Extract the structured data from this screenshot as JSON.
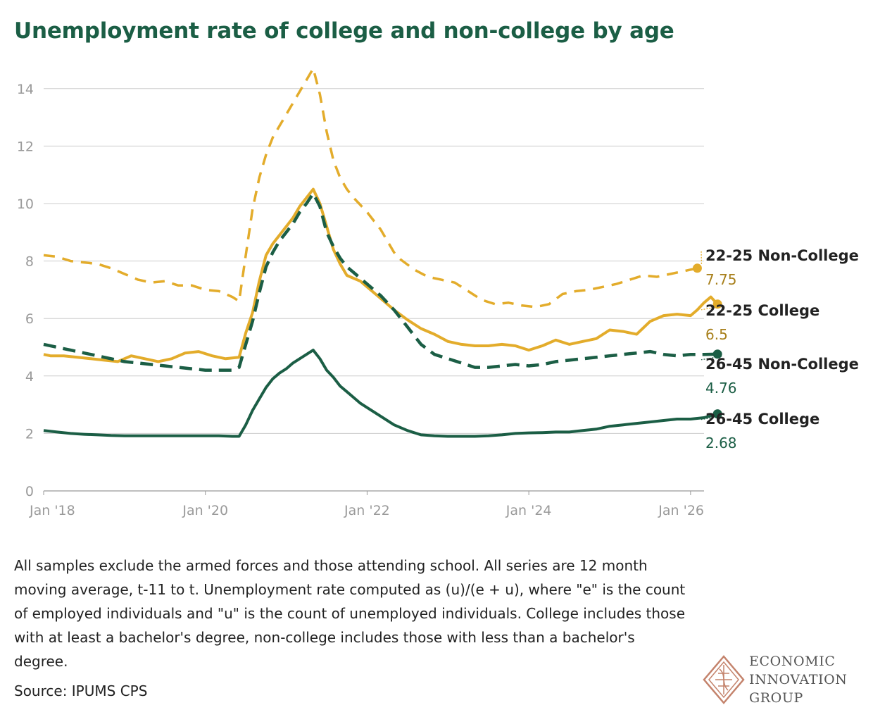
{
  "title": "Unemployment rate of college and non-college by age",
  "note": "All samples exclude the armed forces and those attending school. All series are 12 month moving average, t-11 to t. Unemployment rate computed as (u)/(e + u), where \"e\" is the count of employed individuals and \"u\" is the count of unemployed individuals. College includes those with at least a bachelor's degree, non-college includes those with less than a bachelor's degree.",
  "source": "Source: IPUMS CPS",
  "logo": {
    "lines": [
      "ECONOMIC",
      "INNOVATION",
      "GROUP"
    ]
  },
  "colors": {
    "gold": "#e3ac2b",
    "gold_text": "#a8801c",
    "green": "#1b5e45",
    "green_text": "#1b5e45",
    "grid": "#cccccc",
    "title": "#1b5e45"
  },
  "chart_data": {
    "type": "line",
    "title": "Unemployment rate of college and non-college by age",
    "xlabel": "",
    "ylabel": "",
    "x_ticks": [
      "Jan '18",
      "Jan '20",
      "Jan '22",
      "Jan '24",
      "Jan '26"
    ],
    "x_range": [
      "2018-01",
      "2026-03"
    ],
    "ylim": [
      0,
      15
    ],
    "y_ticks": [
      0,
      2,
      4,
      6,
      8,
      10,
      12,
      14
    ],
    "grid": true,
    "legend": "direct labels at right end",
    "series": [
      {
        "name": "22-25 Non-College",
        "end_value": "7.75",
        "color": "gold",
        "dash": "dashed-thin",
        "points": [
          [
            "2018-01",
            8.2
          ],
          [
            "2018-03",
            8.15
          ],
          [
            "2018-05",
            8.0
          ],
          [
            "2018-07",
            7.95
          ],
          [
            "2018-09",
            7.9
          ],
          [
            "2018-11",
            7.75
          ],
          [
            "2019-01",
            7.55
          ],
          [
            "2019-03",
            7.35
          ],
          [
            "2019-05",
            7.25
          ],
          [
            "2019-07",
            7.3
          ],
          [
            "2019-09",
            7.15
          ],
          [
            "2019-11",
            7.15
          ],
          [
            "2020-01",
            7.0
          ],
          [
            "2020-03",
            6.95
          ],
          [
            "2020-05",
            6.75
          ],
          [
            "2020-06",
            6.6
          ],
          [
            "2020-07",
            8.2
          ],
          [
            "2020-08",
            9.8
          ],
          [
            "2020-09",
            10.9
          ],
          [
            "2020-10",
            11.7
          ],
          [
            "2020-11",
            12.3
          ],
          [
            "2020-12",
            12.7
          ],
          [
            "2021-01",
            13.1
          ],
          [
            "2021-02",
            13.5
          ],
          [
            "2021-03",
            13.9
          ],
          [
            "2021-04",
            14.3
          ],
          [
            "2021-05",
            14.7
          ],
          [
            "2021-06",
            13.8
          ],
          [
            "2021-07",
            12.5
          ],
          [
            "2021-08",
            11.5
          ],
          [
            "2021-09",
            10.9
          ],
          [
            "2021-10",
            10.5
          ],
          [
            "2021-11",
            10.2
          ],
          [
            "2021-12",
            9.95
          ],
          [
            "2022-01",
            9.7
          ],
          [
            "2022-02",
            9.4
          ],
          [
            "2022-03",
            9.1
          ],
          [
            "2022-04",
            8.7
          ],
          [
            "2022-05",
            8.3
          ],
          [
            "2022-06",
            8.05
          ],
          [
            "2022-08",
            7.7
          ],
          [
            "2022-10",
            7.45
          ],
          [
            "2022-12",
            7.35
          ],
          [
            "2023-02",
            7.25
          ],
          [
            "2023-04",
            6.95
          ],
          [
            "2023-06",
            6.65
          ],
          [
            "2023-08",
            6.5
          ],
          [
            "2023-10",
            6.55
          ],
          [
            "2023-12",
            6.45
          ],
          [
            "2024-02",
            6.4
          ],
          [
            "2024-04",
            6.5
          ],
          [
            "2024-06",
            6.85
          ],
          [
            "2024-08",
            6.95
          ],
          [
            "2024-10",
            7.0
          ],
          [
            "2024-12",
            7.1
          ],
          [
            "2025-02",
            7.2
          ],
          [
            "2025-04",
            7.35
          ],
          [
            "2025-06",
            7.5
          ],
          [
            "2025-08",
            7.45
          ],
          [
            "2025-10",
            7.55
          ],
          [
            "2025-12",
            7.65
          ],
          [
            "2026-02",
            7.75
          ]
        ]
      },
      {
        "name": "22-25 College",
        "end_value": "6.5",
        "color": "gold",
        "dash": "solid",
        "points": [
          [
            "2018-01",
            4.75
          ],
          [
            "2018-02",
            4.7
          ],
          [
            "2018-04",
            4.7
          ],
          [
            "2018-06",
            4.65
          ],
          [
            "2018-08",
            4.6
          ],
          [
            "2018-10",
            4.55
          ],
          [
            "2018-12",
            4.5
          ],
          [
            "2019-02",
            4.7
          ],
          [
            "2019-04",
            4.6
          ],
          [
            "2019-06",
            4.5
          ],
          [
            "2019-08",
            4.6
          ],
          [
            "2019-10",
            4.8
          ],
          [
            "2019-12",
            4.85
          ],
          [
            "2020-02",
            4.7
          ],
          [
            "2020-04",
            4.6
          ],
          [
            "2020-06",
            4.65
          ],
          [
            "2020-07",
            5.5
          ],
          [
            "2020-08",
            6.2
          ],
          [
            "2020-09",
            7.3
          ],
          [
            "2020-10",
            8.2
          ],
          [
            "2020-11",
            8.6
          ],
          [
            "2020-12",
            8.9
          ],
          [
            "2021-01",
            9.2
          ],
          [
            "2021-02",
            9.5
          ],
          [
            "2021-03",
            9.9
          ],
          [
            "2021-04",
            10.2
          ],
          [
            "2021-05",
            10.5
          ],
          [
            "2021-06",
            10.0
          ],
          [
            "2021-07",
            9.2
          ],
          [
            "2021-08",
            8.4
          ],
          [
            "2021-09",
            7.9
          ],
          [
            "2021-10",
            7.5
          ],
          [
            "2021-11",
            7.4
          ],
          [
            "2021-12",
            7.3
          ],
          [
            "2022-01",
            7.1
          ],
          [
            "2022-03",
            6.7
          ],
          [
            "2022-05",
            6.3
          ],
          [
            "2022-07",
            5.95
          ],
          [
            "2022-09",
            5.65
          ],
          [
            "2022-11",
            5.45
          ],
          [
            "2023-01",
            5.2
          ],
          [
            "2023-03",
            5.1
          ],
          [
            "2023-05",
            5.05
          ],
          [
            "2023-07",
            5.05
          ],
          [
            "2023-09",
            5.1
          ],
          [
            "2023-11",
            5.05
          ],
          [
            "2024-01",
            4.9
          ],
          [
            "2024-03",
            5.05
          ],
          [
            "2024-05",
            5.25
          ],
          [
            "2024-07",
            5.1
          ],
          [
            "2024-09",
            5.2
          ],
          [
            "2024-11",
            5.3
          ],
          [
            "2025-01",
            5.6
          ],
          [
            "2025-03",
            5.55
          ],
          [
            "2025-05",
            5.45
          ],
          [
            "2025-07",
            5.9
          ],
          [
            "2025-09",
            6.1
          ],
          [
            "2025-11",
            6.15
          ],
          [
            "2026-01",
            6.1
          ],
          [
            "2026-02",
            6.3
          ],
          [
            "2026-03",
            6.55
          ],
          [
            "2026-04",
            6.75
          ],
          [
            "2026-05",
            6.5
          ]
        ]
      },
      {
        "name": "26-45 Non-College",
        "end_value": "4.76",
        "color": "green",
        "dash": "dashed-thick",
        "points": [
          [
            "2018-01",
            5.1
          ],
          [
            "2018-03",
            5.0
          ],
          [
            "2018-05",
            4.9
          ],
          [
            "2018-07",
            4.8
          ],
          [
            "2018-09",
            4.7
          ],
          [
            "2018-11",
            4.6
          ],
          [
            "2019-01",
            4.5
          ],
          [
            "2019-03",
            4.45
          ],
          [
            "2019-05",
            4.4
          ],
          [
            "2019-07",
            4.35
          ],
          [
            "2019-09",
            4.3
          ],
          [
            "2019-11",
            4.25
          ],
          [
            "2020-01",
            4.2
          ],
          [
            "2020-03",
            4.2
          ],
          [
            "2020-05",
            4.2
          ],
          [
            "2020-06",
            4.3
          ],
          [
            "2020-07",
            5.1
          ],
          [
            "2020-08",
            5.9
          ],
          [
            "2020-09",
            6.9
          ],
          [
            "2020-10",
            7.8
          ],
          [
            "2020-11",
            8.3
          ],
          [
            "2020-12",
            8.7
          ],
          [
            "2021-01",
            9.0
          ],
          [
            "2021-02",
            9.3
          ],
          [
            "2021-03",
            9.7
          ],
          [
            "2021-04",
            10.0
          ],
          [
            "2021-05",
            10.35
          ],
          [
            "2021-06",
            9.9
          ],
          [
            "2021-07",
            9.0
          ],
          [
            "2021-08",
            8.5
          ],
          [
            "2021-09",
            8.1
          ],
          [
            "2021-10",
            7.8
          ],
          [
            "2021-11",
            7.6
          ],
          [
            "2021-12",
            7.4
          ],
          [
            "2022-01",
            7.2
          ],
          [
            "2022-03",
            6.8
          ],
          [
            "2022-05",
            6.3
          ],
          [
            "2022-07",
            5.7
          ],
          [
            "2022-09",
            5.1
          ],
          [
            "2022-11",
            4.75
          ],
          [
            "2023-01",
            4.6
          ],
          [
            "2023-03",
            4.45
          ],
          [
            "2023-05",
            4.3
          ],
          [
            "2023-07",
            4.3
          ],
          [
            "2023-09",
            4.35
          ],
          [
            "2023-11",
            4.4
          ],
          [
            "2024-01",
            4.35
          ],
          [
            "2024-03",
            4.4
          ],
          [
            "2024-05",
            4.5
          ],
          [
            "2024-07",
            4.55
          ],
          [
            "2024-09",
            4.6
          ],
          [
            "2024-11",
            4.65
          ],
          [
            "2025-01",
            4.7
          ],
          [
            "2025-03",
            4.75
          ],
          [
            "2025-05",
            4.8
          ],
          [
            "2025-07",
            4.85
          ],
          [
            "2025-09",
            4.75
          ],
          [
            "2025-11",
            4.7
          ],
          [
            "2026-01",
            4.75
          ],
          [
            "2026-03",
            4.75
          ],
          [
            "2026-05",
            4.76
          ]
        ]
      },
      {
        "name": "26-45 College",
        "end_value": "2.68",
        "color": "green",
        "dash": "solid",
        "points": [
          [
            "2018-01",
            2.1
          ],
          [
            "2018-03",
            2.05
          ],
          [
            "2018-05",
            2.0
          ],
          [
            "2018-07",
            1.97
          ],
          [
            "2018-09",
            1.95
          ],
          [
            "2018-11",
            1.93
          ],
          [
            "2019-01",
            1.92
          ],
          [
            "2019-03",
            1.92
          ],
          [
            "2019-05",
            1.92
          ],
          [
            "2019-07",
            1.92
          ],
          [
            "2019-09",
            1.92
          ],
          [
            "2019-11",
            1.92
          ],
          [
            "2020-01",
            1.92
          ],
          [
            "2020-03",
            1.92
          ],
          [
            "2020-05",
            1.9
          ],
          [
            "2020-06",
            1.9
          ],
          [
            "2020-07",
            2.3
          ],
          [
            "2020-08",
            2.8
          ],
          [
            "2020-09",
            3.2
          ],
          [
            "2020-10",
            3.6
          ],
          [
            "2020-11",
            3.9
          ],
          [
            "2020-12",
            4.1
          ],
          [
            "2021-01",
            4.25
          ],
          [
            "2021-02",
            4.45
          ],
          [
            "2021-03",
            4.6
          ],
          [
            "2021-04",
            4.75
          ],
          [
            "2021-05",
            4.9
          ],
          [
            "2021-06",
            4.6
          ],
          [
            "2021-07",
            4.2
          ],
          [
            "2021-08",
            3.95
          ],
          [
            "2021-09",
            3.65
          ],
          [
            "2021-10",
            3.45
          ],
          [
            "2021-11",
            3.25
          ],
          [
            "2021-12",
            3.05
          ],
          [
            "2022-01",
            2.9
          ],
          [
            "2022-03",
            2.6
          ],
          [
            "2022-05",
            2.3
          ],
          [
            "2022-07",
            2.1
          ],
          [
            "2022-09",
            1.95
          ],
          [
            "2022-11",
            1.92
          ],
          [
            "2023-01",
            1.9
          ],
          [
            "2023-03",
            1.9
          ],
          [
            "2023-05",
            1.9
          ],
          [
            "2023-07",
            1.92
          ],
          [
            "2023-09",
            1.95
          ],
          [
            "2023-11",
            2.0
          ],
          [
            "2024-01",
            2.02
          ],
          [
            "2024-03",
            2.03
          ],
          [
            "2024-05",
            2.05
          ],
          [
            "2024-07",
            2.05
          ],
          [
            "2024-09",
            2.1
          ],
          [
            "2024-11",
            2.15
          ],
          [
            "2025-01",
            2.25
          ],
          [
            "2025-03",
            2.3
          ],
          [
            "2025-05",
            2.35
          ],
          [
            "2025-07",
            2.4
          ],
          [
            "2025-09",
            2.45
          ],
          [
            "2025-11",
            2.5
          ],
          [
            "2026-01",
            2.5
          ],
          [
            "2026-03",
            2.55
          ],
          [
            "2026-05",
            2.68
          ]
        ]
      }
    ]
  }
}
